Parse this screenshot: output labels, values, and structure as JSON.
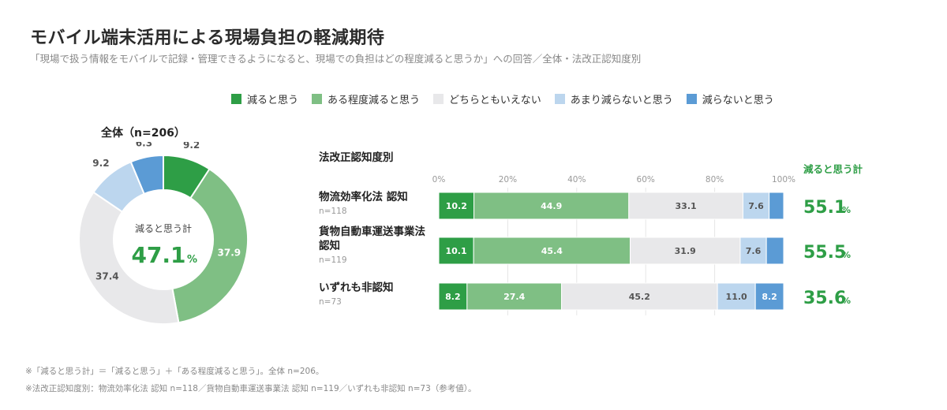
{
  "title": "モバイル端末活用による現場負担の軽減期待",
  "subtitle": "「現場で扱う情報をモバイルで記録・管理できるようになると、現場での負担はどの程度減ると思うか」への回答／全体・法改正認知度別",
  "legend": [
    {
      "label": "減ると思う",
      "color": "#2e9e46"
    },
    {
      "label": "ある程度減ると思う",
      "color": "#7fbf84"
    },
    {
      "label": "どちらともいえない",
      "color": "#e8e8ea"
    },
    {
      "label": "あまり減らないと思う",
      "color": "#bcd6ee"
    },
    {
      "label": "減らないと思う",
      "color": "#5b9bd5"
    }
  ],
  "donut": {
    "title": "全体（n=206）",
    "center_label": "減ると思う計",
    "center_value": "47.1",
    "center_unit": "%"
  },
  "bars_section": {
    "title": "法改正認知度別",
    "total_header": "減ると思う計",
    "axis_ticks": [
      "0%",
      "20%",
      "40%",
      "60%",
      "80%",
      "100%"
    ]
  },
  "chart_data": [
    {
      "type": "pie",
      "title": "全体（n=206）",
      "categories": [
        "減ると思う",
        "ある程度減ると思う",
        "どちらともいえない",
        "あまり減らないと思う",
        "減らないと思う"
      ],
      "values": [
        9.2,
        37.9,
        37.4,
        9.2,
        6.3
      ],
      "colors": [
        "#2e9e46",
        "#7fbf84",
        "#e8e8ea",
        "#bcd6ee",
        "#5b9bd5"
      ]
    },
    {
      "type": "bar",
      "orientation": "horizontal",
      "stacked": true,
      "title": "法改正認知度別",
      "xlim": [
        0,
        100
      ],
      "categories": [
        {
          "name": "物流効率化法 認知",
          "n": "n=118",
          "total": "55.1"
        },
        {
          "name": "貨物自動車運送事業法 認知",
          "n": "n=119",
          "total": "55.5"
        },
        {
          "name": "いずれも非認知",
          "n": "n=73",
          "total": "35.6"
        }
      ],
      "series": [
        {
          "name": "減ると思う",
          "color": "#2e9e46",
          "values": [
            10.2,
            10.1,
            8.2
          ]
        },
        {
          "name": "ある程度減ると思う",
          "color": "#7fbf84",
          "values": [
            44.9,
            45.4,
            27.4
          ]
        },
        {
          "name": "どちらともいえない",
          "color": "#e8e8ea",
          "values": [
            33.1,
            31.9,
            45.2
          ]
        },
        {
          "name": "あまり減らないと思う",
          "color": "#bcd6ee",
          "values": [
            7.6,
            7.6,
            11.0
          ]
        },
        {
          "name": "減らないと思う",
          "color": "#5b9bd5",
          "values": [
            4.2,
            5.0,
            8.2
          ]
        }
      ]
    }
  ],
  "footnotes": [
    "※「減ると思う計」＝「減ると思う」＋「ある程度減ると思う」。全体 n=206。",
    "※法改正認知度別：物流効率化法 認知 n=118／貨物自動車運送事業法 認知 n=119／いずれも非認知 n=73（参考値）。"
  ]
}
